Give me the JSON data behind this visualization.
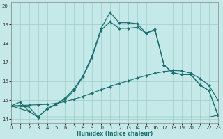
{
  "xlabel": "Humidex (Indice chaleur)",
  "bg_color": "#c5e8e8",
  "grid_color": "#9ecece",
  "line_color": "#1a6e6e",
  "xlim": [
    0,
    23
  ],
  "ylim": [
    13.8,
    20.2
  ],
  "xticks": [
    0,
    1,
    2,
    3,
    4,
    5,
    6,
    7,
    8,
    9,
    10,
    11,
    12,
    13,
    14,
    15,
    16,
    17,
    18,
    19,
    20,
    21,
    22,
    23
  ],
  "yticks": [
    14,
    15,
    16,
    17,
    18,
    19,
    20
  ],
  "curve1_x": [
    0,
    1,
    2,
    3,
    4,
    5,
    6,
    7,
    8,
    9,
    10,
    11,
    12,
    13,
    14,
    15,
    16,
    17,
    18,
    19,
    20,
    21,
    22,
    23
  ],
  "curve1_y": [
    14.7,
    14.9,
    14.4,
    14.1,
    14.55,
    14.75,
    15.1,
    15.6,
    16.3,
    17.35,
    18.8,
    19.65,
    19.1,
    19.1,
    19.05,
    18.55,
    18.75,
    16.85,
    16.45,
    16.35,
    16.35,
    15.8,
    15.5,
    14.2
  ],
  "curve2_x": [
    0,
    2,
    3,
    4,
    5,
    6,
    7,
    8,
    9,
    10,
    11,
    12,
    13,
    14,
    15,
    16,
    17,
    18,
    19,
    20,
    21,
    22,
    23
  ],
  "curve2_y": [
    14.7,
    14.4,
    14.1,
    14.55,
    14.8,
    15.05,
    15.5,
    16.25,
    17.25,
    18.7,
    19.15,
    18.8,
    18.8,
    18.85,
    18.55,
    18.7,
    16.85,
    16.45,
    16.35,
    16.35,
    15.8,
    15.5,
    14.2
  ],
  "curve3_x": [
    0,
    1,
    2,
    3,
    4,
    5,
    6,
    7,
    8,
    9,
    10,
    11,
    12,
    13,
    14,
    15,
    16,
    17,
    18,
    19,
    20,
    21,
    22,
    23
  ],
  "curve3_y": [
    14.7,
    14.72,
    14.74,
    14.76,
    14.78,
    14.83,
    14.92,
    15.05,
    15.2,
    15.38,
    15.55,
    15.72,
    15.88,
    16.02,
    16.17,
    16.3,
    16.42,
    16.52,
    16.57,
    16.55,
    16.42,
    16.15,
    15.78,
    15.0
  ],
  "curve4_x": [
    0,
    1,
    2,
    3,
    4,
    5,
    6,
    7,
    8,
    9,
    10,
    11,
    12,
    13,
    14,
    15,
    16,
    17,
    18,
    19,
    20,
    21,
    22,
    23
  ],
  "curve4_y": [
    14.7,
    14.67,
    14.64,
    14.1,
    14.1,
    14.1,
    14.1,
    14.1,
    14.1,
    14.1,
    14.1,
    14.1,
    14.1,
    14.1,
    14.1,
    14.1,
    14.1,
    14.1,
    14.1,
    14.1,
    14.1,
    14.1,
    14.1,
    14.2
  ]
}
